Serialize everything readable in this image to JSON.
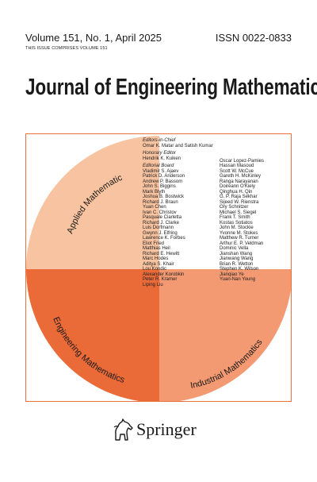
{
  "header": {
    "volume_line": "Volume 151, No. 1, April 2025",
    "issn": "ISSN 0022-0833",
    "comprises": "THIS ISSUE COMPRISES VOLUME 151"
  },
  "title": "Journal of Engineering Mathematics",
  "sections": {
    "top_left": "Applied Mathematics",
    "bottom_left": "Engineering Mathematics",
    "bottom_right": "Industrial Mathematics"
  },
  "colors": {
    "light": "#f8c3a0",
    "dark": "#ea6a38",
    "medium": "#f39a72",
    "border": "#e8703a"
  },
  "editors": {
    "chief_label": "Editors-in-Chief",
    "chief_names": "Omar K. Matar and Satish Kumar",
    "honorary_label": "Honorary Editor",
    "honorary_name": "Hendrik K. Kuiken",
    "board_label": "Editorial Board",
    "column1": [
      "Vladimir S. Ajaev",
      "Patrick D. Anderson",
      "Andrew P. Bassom",
      "John S. Biggins",
      "Mark Blyth",
      "Joshua B. Bostwick",
      "Richard J. Braun",
      "Yuan Chen",
      "Ivan C. Christov",
      "Pasquale Ciarletta",
      "Richard J. Clarke",
      "Luis Dorfmann",
      "Gwynn J. Elfring",
      "Lawrence K. Forbes",
      "Eliot Fried",
      "Matthias Heil",
      "Richard E. Hewitt",
      "Marc Hodes",
      "Aditya S. Khair",
      "Lou Kondic",
      "Alexander Korobkin",
      "Peter R. Kramer",
      "Liping Liu"
    ],
    "column2": [
      "Oscar Lopez-Pamies",
      "Hassan Masoud",
      "Scott W. McCue",
      "Gareth H. McKinley",
      "Ranga Narayanan",
      "Doireann O'Kiely",
      "Qinghua H. Qin",
      "G. P. Raja Sekhar",
      "Sijeed W. Rienstra",
      "Ory Schnitzer",
      "Michael S. Siegel",
      "Frank T. Smith",
      "Kostas Sotiatos",
      "John M. Stockie",
      "Yvonne M. Stokes",
      "Matthew R. Turner",
      "Arthur E. P. Veldman",
      "Dominic Vella",
      "Jianshan Wang",
      "Jianwang Wang",
      "Brian R. Wetton",
      "Stephen K. Wilson",
      "Jianqiao Ye",
      "Yuan-Nan Young"
    ]
  },
  "publisher": {
    "name": "Springer",
    "logo_icon": "springer-horse-icon"
  }
}
